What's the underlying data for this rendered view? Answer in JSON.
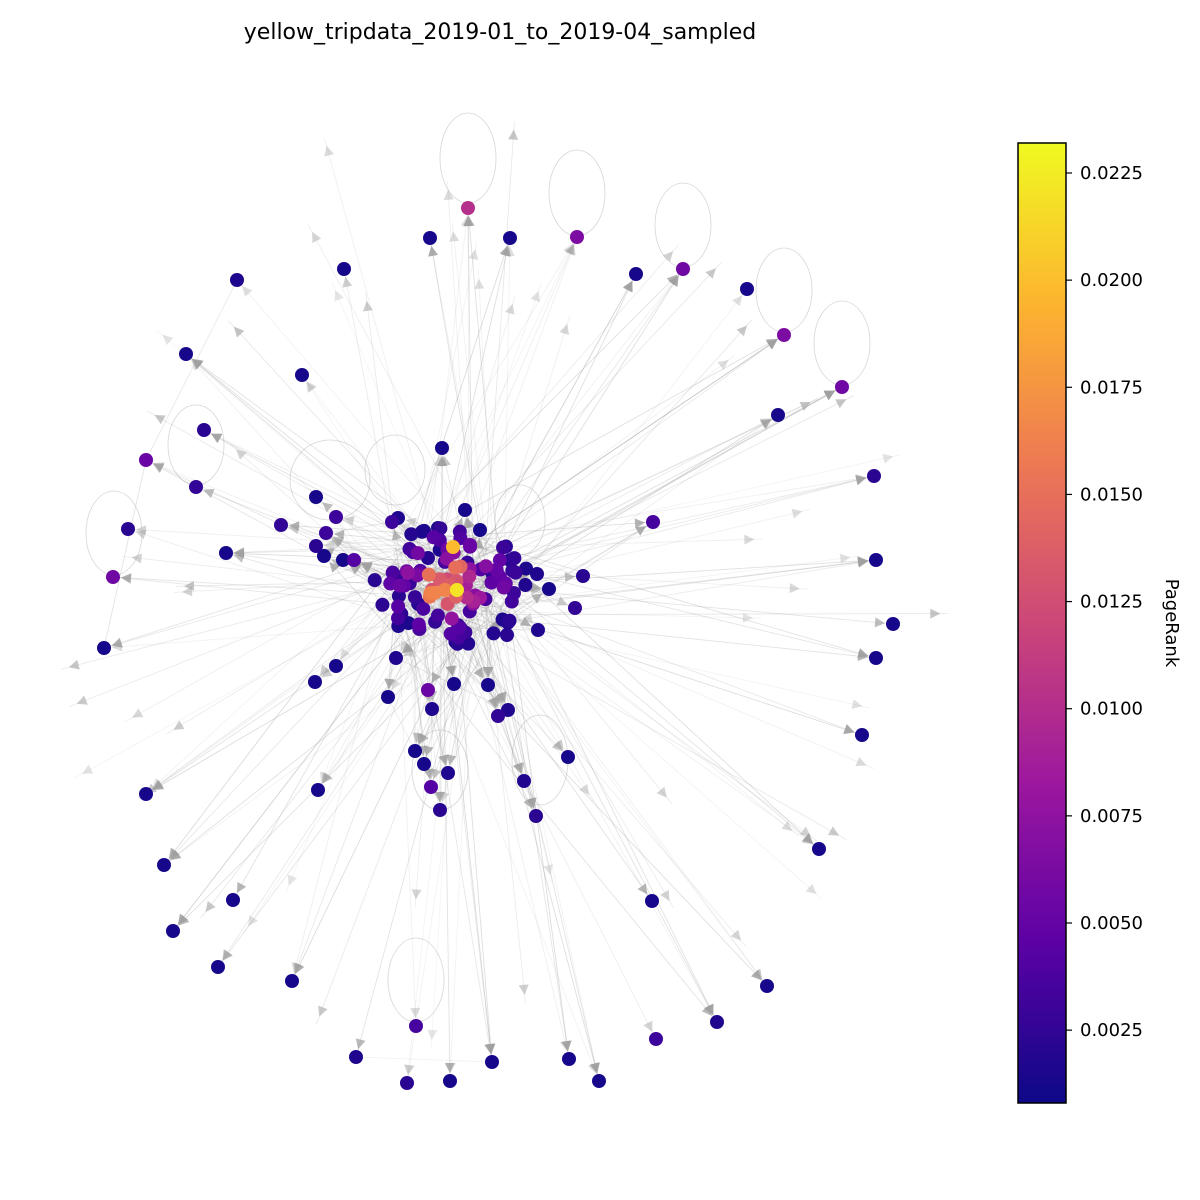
{
  "title": "yellow_tripdata_2019-01_to_2019-04_sampled",
  "colorbar": {
    "label": "PageRank",
    "min": 0.0008,
    "max": 0.0232,
    "ticks": [
      {
        "value": 0.0025,
        "label": "0.0025"
      },
      {
        "value": 0.005,
        "label": "0.0050"
      },
      {
        "value": 0.0075,
        "label": "0.0075"
      },
      {
        "value": 0.01,
        "label": "0.0100"
      },
      {
        "value": 0.0125,
        "label": "0.0125"
      },
      {
        "value": 0.015,
        "label": "0.0150"
      },
      {
        "value": 0.0175,
        "label": "0.0175"
      },
      {
        "value": 0.02,
        "label": "0.0200"
      },
      {
        "value": 0.0225,
        "label": "0.0225"
      }
    ],
    "colormap": "plasma"
  },
  "colors": {
    "edge": "#a0a0a0",
    "colorbar_stops": [
      "#0d0887",
      "#5c01a6",
      "#9c179e",
      "#cc4778",
      "#ed7953",
      "#fdb42f",
      "#f0f921"
    ]
  }
}
